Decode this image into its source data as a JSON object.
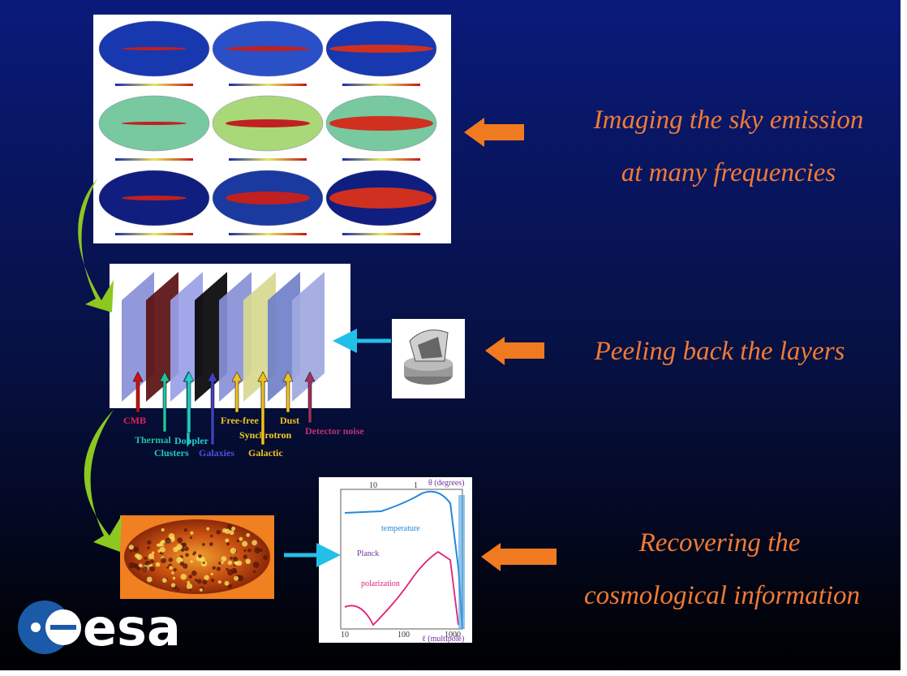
{
  "slide": {
    "captions": [
      {
        "lines": [
          "Imaging the sky emission",
          "at many frequencies"
        ]
      },
      {
        "lines": [
          "Peeling back the layers"
        ]
      },
      {
        "lines": [
          "Recovering the",
          "cosmological information"
        ]
      }
    ],
    "components": [
      "CMB",
      "Thermal",
      "Clusters",
      "Doppler",
      "Galaxies",
      "Free-free",
      "Synchrotron",
      "Galactic",
      "Dust",
      "Detector noise"
    ],
    "plot": {
      "top_axis": "θ (degrees)",
      "bottom_axis": "ℓ (multipole)",
      "title": "Planck",
      "temperature": "temperature",
      "polarization": "polarization",
      "top_ticks": [
        "10",
        "1"
      ],
      "bottom_ticks": [
        "10",
        "100",
        "1000"
      ]
    },
    "logo": "esa"
  }
}
